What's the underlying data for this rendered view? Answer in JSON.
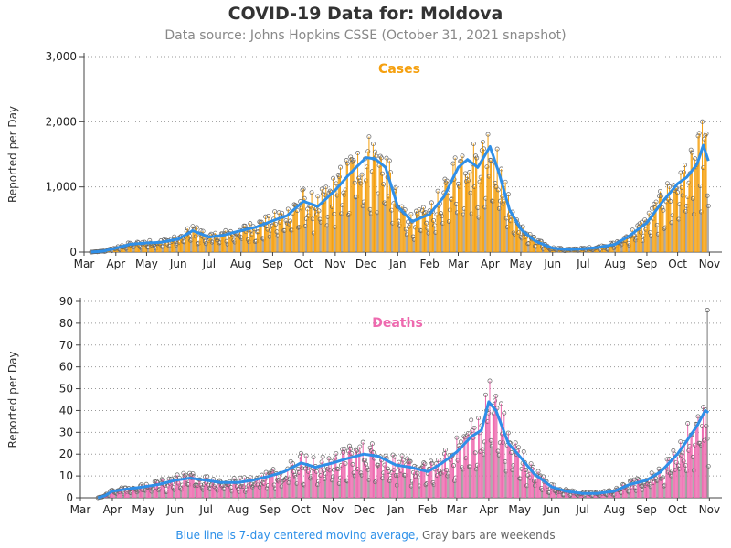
{
  "title": "COVID-19 Data for: Moldova",
  "subtitle": "Data source: Johns Hopkins CSSE (October 31, 2021 snapshot)",
  "footnote": {
    "blue": "Blue line is 7-day centered moving average,",
    "gray": "Gray bars are weekends"
  },
  "colors": {
    "cases": "#f5a00f",
    "deaths": "#ee6aaf",
    "average": "#2f8fe8",
    "weekend": "#8c8c8c"
  },
  "chart_data": [
    {
      "type": "bar",
      "title": "Cases",
      "ylabel": "Reported per Day",
      "ylim": [
        0,
        3000
      ],
      "yticks": [
        0,
        1000,
        2000,
        3000
      ],
      "ytick_labels": [
        "0",
        "1,000",
        "2,000",
        "3,000"
      ],
      "grid": true,
      "x_start": "2020-03-01",
      "x_end": "2021-11-06",
      "x_tick_labels": [
        "Mar",
        "Apr",
        "May",
        "Jun",
        "Jul",
        "Aug",
        "Sep",
        "Oct",
        "Nov",
        "Dec",
        "Jan",
        "Feb",
        "Mar",
        "Apr",
        "May",
        "Jun",
        "Jul",
        "Aug",
        "Sep",
        "Oct",
        "Nov"
      ],
      "x_tick_dates": [
        "2020-03-01",
        "2020-04-01",
        "2020-05-01",
        "2020-06-01",
        "2020-07-01",
        "2020-08-01",
        "2020-09-01",
        "2020-10-01",
        "2020-11-01",
        "2020-12-01",
        "2021-01-01",
        "2021-02-01",
        "2021-03-01",
        "2021-04-01",
        "2021-05-01",
        "2021-06-01",
        "2021-07-01",
        "2021-08-01",
        "2021-09-01",
        "2021-10-01",
        "2021-11-01"
      ],
      "series": [
        {
          "values_approx_7day_avg_at_dates": [
            [
              "2020-03-08",
              0
            ],
            [
              "2020-03-20",
              15
            ],
            [
              "2020-04-01",
              60
            ],
            [
              "2020-04-15",
              120
            ],
            [
              "2020-05-01",
              140
            ],
            [
              "2020-05-15",
              150
            ],
            [
              "2020-06-01",
              200
            ],
            [
              "2020-06-15",
              330
            ],
            [
              "2020-07-01",
              230
            ],
            [
              "2020-07-15",
              260
            ],
            [
              "2020-08-01",
              330
            ],
            [
              "2020-08-15",
              380
            ],
            [
              "2020-09-01",
              480
            ],
            [
              "2020-09-15",
              560
            ],
            [
              "2020-10-01",
              780
            ],
            [
              "2020-10-15",
              700
            ],
            [
              "2020-11-01",
              950
            ],
            [
              "2020-11-15",
              1200
            ],
            [
              "2020-12-01",
              1450
            ],
            [
              "2020-12-10",
              1430
            ],
            [
              "2020-12-20",
              1300
            ],
            [
              "2021-01-01",
              700
            ],
            [
              "2021-01-15",
              470
            ],
            [
              "2021-02-01",
              580
            ],
            [
              "2021-02-15",
              850
            ],
            [
              "2021-03-01",
              1300
            ],
            [
              "2021-03-10",
              1420
            ],
            [
              "2021-03-20",
              1300
            ],
            [
              "2021-04-01",
              1620
            ],
            [
              "2021-04-10",
              1200
            ],
            [
              "2021-04-20",
              650
            ],
            [
              "2021-05-01",
              350
            ],
            [
              "2021-05-15",
              170
            ],
            [
              "2021-06-01",
              60
            ],
            [
              "2021-06-15",
              40
            ],
            [
              "2021-07-01",
              50
            ],
            [
              "2021-07-15",
              70
            ],
            [
              "2021-08-01",
              120
            ],
            [
              "2021-08-15",
              250
            ],
            [
              "2021-09-01",
              450
            ],
            [
              "2021-09-15",
              750
            ],
            [
              "2021-10-01",
              1050
            ],
            [
              "2021-10-10",
              1150
            ],
            [
              "2021-10-20",
              1350
            ],
            [
              "2021-10-26",
              1640
            ],
            [
              "2021-10-31",
              1400
            ]
          ]
        }
      ]
    },
    {
      "type": "bar",
      "title": "Deaths",
      "ylabel": "Reported per Day",
      "ylim": [
        0,
        90
      ],
      "yticks": [
        0,
        10,
        20,
        30,
        40,
        50,
        60,
        70,
        80,
        90
      ],
      "ytick_labels": [
        "0",
        "10",
        "20",
        "30",
        "40",
        "50",
        "60",
        "70",
        "80",
        "90"
      ],
      "grid": true,
      "x_start": "2020-03-01",
      "x_end": "2021-11-06",
      "x_tick_labels": [
        "Mar",
        "Apr",
        "May",
        "Jun",
        "Jul",
        "Aug",
        "Sep",
        "Oct",
        "Nov",
        "Dec",
        "Jan",
        "Feb",
        "Mar",
        "Apr",
        "May",
        "Jun",
        "Jul",
        "Aug",
        "Sep",
        "Oct",
        "Nov"
      ],
      "x_tick_dates": [
        "2020-03-01",
        "2020-04-01",
        "2020-05-01",
        "2020-06-01",
        "2020-07-01",
        "2020-08-01",
        "2020-09-01",
        "2020-10-01",
        "2020-11-01",
        "2020-12-01",
        "2021-01-01",
        "2021-02-01",
        "2021-03-01",
        "2021-04-01",
        "2021-05-01",
        "2021-06-01",
        "2021-07-01",
        "2021-08-01",
        "2021-09-01",
        "2021-10-01",
        "2021-11-01"
      ],
      "series": [
        {
          "values_approx_7day_avg_at_dates": [
            [
              "2020-03-18",
              0
            ],
            [
              "2020-03-25",
              1
            ],
            [
              "2020-04-01",
              3
            ],
            [
              "2020-04-15",
              4
            ],
            [
              "2020-05-01",
              5
            ],
            [
              "2020-05-15",
              6
            ],
            [
              "2020-06-01",
              8
            ],
            [
              "2020-06-15",
              9
            ],
            [
              "2020-07-01",
              8
            ],
            [
              "2020-07-15",
              7
            ],
            [
              "2020-08-01",
              7
            ],
            [
              "2020-08-15",
              8
            ],
            [
              "2020-09-01",
              10
            ],
            [
              "2020-09-15",
              12
            ],
            [
              "2020-10-01",
              16
            ],
            [
              "2020-10-15",
              14
            ],
            [
              "2020-11-01",
              16
            ],
            [
              "2020-11-15",
              18
            ],
            [
              "2020-12-01",
              20
            ],
            [
              "2020-12-15",
              19
            ],
            [
              "2021-01-01",
              15
            ],
            [
              "2021-01-15",
              14
            ],
            [
              "2021-02-01",
              12
            ],
            [
              "2021-02-15",
              16
            ],
            [
              "2021-03-01",
              21
            ],
            [
              "2021-03-15",
              28
            ],
            [
              "2021-03-25",
              31
            ],
            [
              "2021-04-01",
              44
            ],
            [
              "2021-04-08",
              40
            ],
            [
              "2021-04-20",
              25
            ],
            [
              "2021-05-01",
              19
            ],
            [
              "2021-05-15",
              11
            ],
            [
              "2021-06-01",
              5
            ],
            [
              "2021-06-15",
              3
            ],
            [
              "2021-07-01",
              2
            ],
            [
              "2021-07-15",
              2
            ],
            [
              "2021-08-01",
              3
            ],
            [
              "2021-08-15",
              6
            ],
            [
              "2021-09-01",
              8
            ],
            [
              "2021-09-15",
              12
            ],
            [
              "2021-10-01",
              20
            ],
            [
              "2021-10-10",
              26
            ],
            [
              "2021-10-20",
              33
            ],
            [
              "2021-10-28",
              40
            ],
            [
              "2021-10-31",
              39
            ]
          ],
          "max_daily_value": 86,
          "max_daily_date": "2021-10-30"
        }
      ]
    }
  ]
}
